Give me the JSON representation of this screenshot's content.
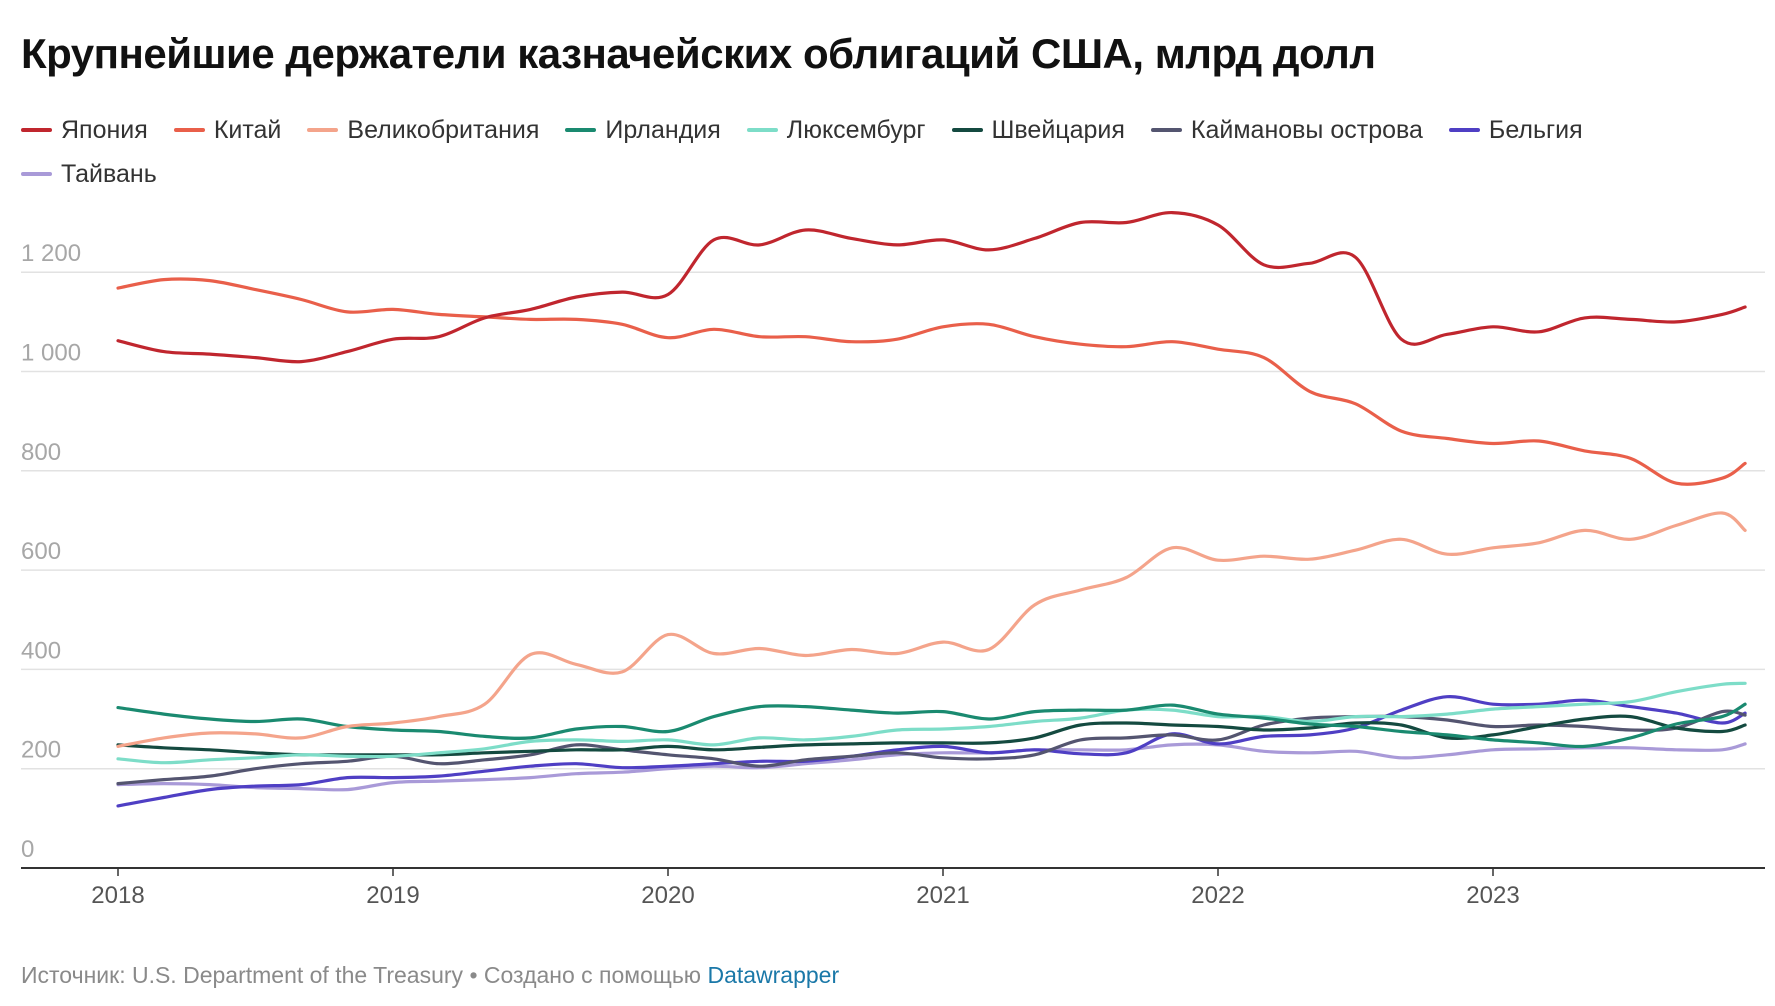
{
  "title": "Крупнейшие держатели казначейских облигаций США, млрд долл",
  "footer": {
    "source_text": "Источник: U.S. Department of the Treasury • Создано с помощью",
    "link_text": "Datawrapper"
  },
  "chart_data": {
    "type": "line",
    "title": "Крупнейшие держатели казначейских облигаций США, млрд долл",
    "xlabel": "",
    "ylabel": "",
    "x_range": [
      "2018-01",
      "2023-12"
    ],
    "ylim": [
      0,
      1350
    ],
    "y_ticks": [
      {
        "value": 0,
        "label": "0"
      },
      {
        "value": 200,
        "label": "200"
      },
      {
        "value": 400,
        "label": "400"
      },
      {
        "value": 600,
        "label": "600"
      },
      {
        "value": 800,
        "label": "800"
      },
      {
        "value": 1000,
        "label": "1 000"
      },
      {
        "value": 1200,
        "label": "1 200"
      }
    ],
    "x_ticks": [
      "2018",
      "2019",
      "2020",
      "2021",
      "2022",
      "2023"
    ],
    "grid": "horizontal",
    "legend_position": "top",
    "x": [
      "2018-01",
      "2018-03",
      "2018-05",
      "2018-07",
      "2018-09",
      "2018-11",
      "2019-01",
      "2019-03",
      "2019-05",
      "2019-07",
      "2019-09",
      "2019-11",
      "2020-01",
      "2020-03",
      "2020-05",
      "2020-07",
      "2020-09",
      "2020-11",
      "2021-01",
      "2021-03",
      "2021-05",
      "2021-07",
      "2021-09",
      "2021-11",
      "2022-01",
      "2022-03",
      "2022-05",
      "2022-07",
      "2022-09",
      "2022-11",
      "2023-01",
      "2023-03",
      "2023-05",
      "2023-07",
      "2023-09",
      "2023-11",
      "2023-12"
    ],
    "series": [
      {
        "name": "Япония",
        "color": "#c0262e",
        "values": [
          1062,
          1040,
          1035,
          1028,
          1020,
          1040,
          1065,
          1070,
          1108,
          1125,
          1150,
          1160,
          1155,
          1265,
          1255,
          1285,
          1268,
          1255,
          1265,
          1245,
          1268,
          1300,
          1300,
          1320,
          1295,
          1215,
          1218,
          1230,
          1065,
          1075,
          1090,
          1080,
          1108,
          1105,
          1100,
          1115,
          1130
        ]
      },
      {
        "name": "Китай",
        "color": "#e95f4a",
        "values": [
          1168,
          1185,
          1183,
          1165,
          1145,
          1120,
          1125,
          1115,
          1110,
          1105,
          1105,
          1095,
          1068,
          1085,
          1070,
          1070,
          1060,
          1065,
          1090,
          1095,
          1070,
          1055,
          1050,
          1060,
          1045,
          1028,
          960,
          935,
          880,
          865,
          855,
          860,
          840,
          825,
          775,
          785,
          815
        ]
      },
      {
        "name": "Великобритания",
        "color": "#f4a48b",
        "values": [
          245,
          262,
          272,
          270,
          262,
          285,
          292,
          305,
          330,
          430,
          410,
          395,
          470,
          432,
          442,
          428,
          440,
          432,
          455,
          440,
          530,
          560,
          585,
          645,
          620,
          628,
          622,
          640,
          662,
          632,
          645,
          655,
          680,
          662,
          690,
          715,
          680
        ]
      },
      {
        "name": "Ирландия",
        "color": "#1a8a70",
        "values": [
          323,
          310,
          300,
          295,
          300,
          285,
          278,
          275,
          265,
          262,
          280,
          285,
          275,
          305,
          325,
          325,
          318,
          312,
          315,
          300,
          315,
          318,
          318,
          328,
          310,
          302,
          290,
          285,
          275,
          268,
          258,
          252,
          245,
          262,
          290,
          305,
          330
        ]
      },
      {
        "name": "Люксембург",
        "color": "#7dddc8",
        "values": [
          220,
          212,
          218,
          222,
          228,
          225,
          225,
          232,
          240,
          255,
          258,
          255,
          258,
          248,
          262,
          258,
          265,
          278,
          280,
          285,
          295,
          302,
          318,
          318,
          305,
          305,
          295,
          305,
          305,
          310,
          320,
          325,
          330,
          335,
          355,
          370,
          372
        ]
      },
      {
        "name": "Швейцария",
        "color": "#144a40",
        "values": [
          248,
          242,
          238,
          232,
          228,
          228,
          228,
          228,
          232,
          235,
          238,
          238,
          245,
          238,
          243,
          248,
          250,
          252,
          252,
          252,
          262,
          288,
          292,
          288,
          285,
          278,
          282,
          292,
          288,
          262,
          268,
          285,
          300,
          305,
          282,
          275,
          288
        ]
      },
      {
        "name": "Каймановы острова",
        "color": "#545570",
        "values": [
          170,
          178,
          185,
          200,
          210,
          215,
          225,
          210,
          218,
          228,
          248,
          238,
          228,
          220,
          205,
          218,
          225,
          232,
          222,
          220,
          228,
          258,
          262,
          268,
          258,
          288,
          302,
          305,
          305,
          298,
          285,
          288,
          285,
          278,
          282,
          315,
          308
        ]
      },
      {
        "name": "Бельгия",
        "color": "#4f3fc4",
        "values": [
          125,
          142,
          158,
          165,
          168,
          182,
          182,
          185,
          195,
          205,
          210,
          202,
          205,
          210,
          215,
          215,
          225,
          238,
          245,
          232,
          238,
          230,
          232,
          270,
          250,
          265,
          268,
          282,
          318,
          345,
          330,
          330,
          338,
          325,
          312,
          292,
          312
        ]
      },
      {
        "name": "Тайвань",
        "color": "#a99ad8",
        "values": [
          168,
          170,
          168,
          162,
          160,
          158,
          172,
          175,
          178,
          182,
          190,
          193,
          200,
          205,
          202,
          210,
          218,
          228,
          232,
          232,
          238,
          238,
          238,
          248,
          248,
          235,
          232,
          235,
          222,
          228,
          238,
          240,
          242,
          242,
          238,
          238,
          250
        ]
      }
    ]
  }
}
